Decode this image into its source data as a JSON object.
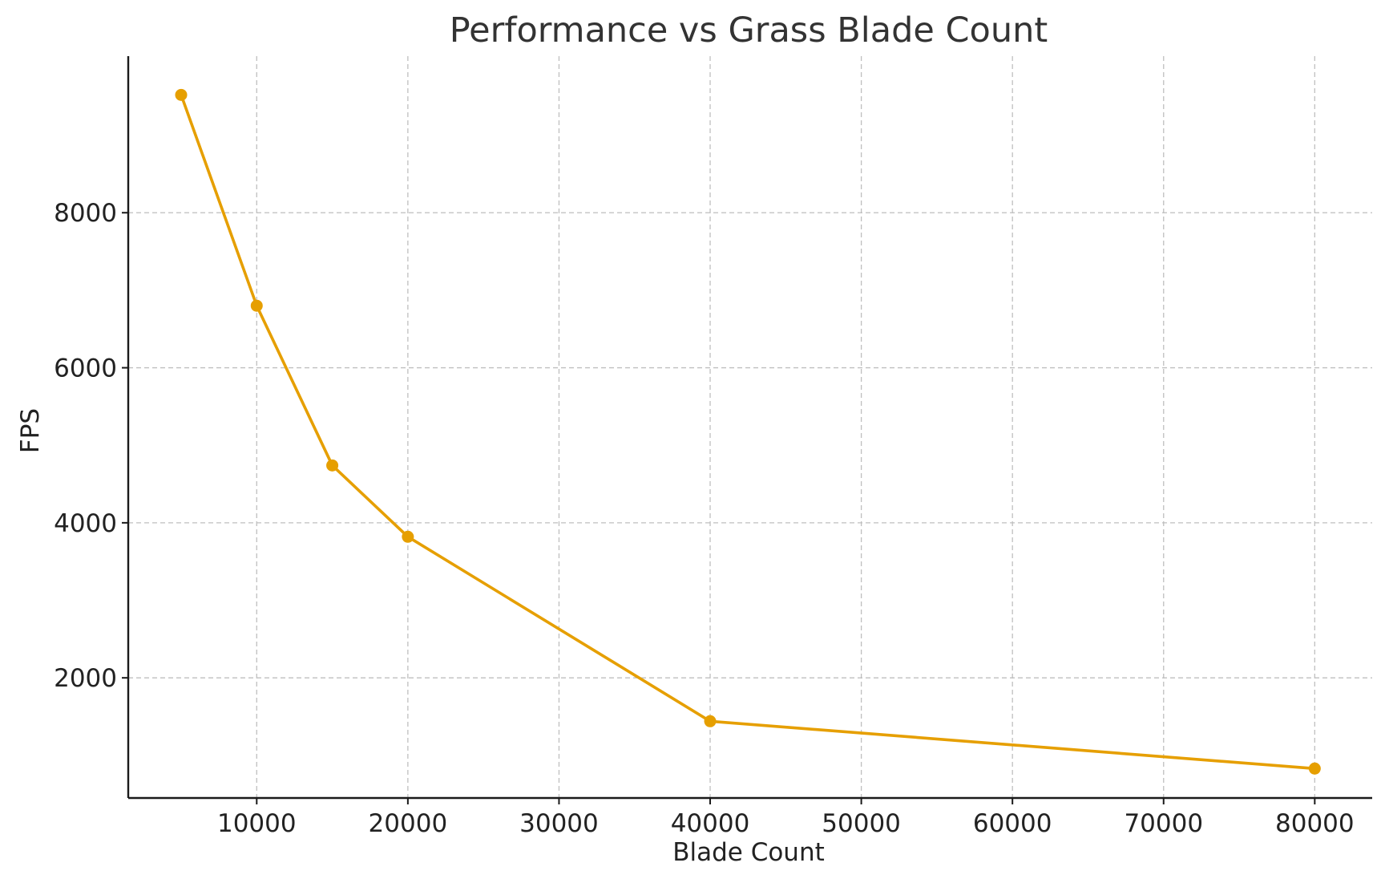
{
  "chart_data": {
    "type": "line",
    "title": "Performance vs Grass Blade Count",
    "xlabel": "Blade Count",
    "ylabel": "FPS",
    "xlim": [
      1500,
      83800
    ],
    "ylim": [
      450,
      10020
    ],
    "x_ticks": [
      10000,
      20000,
      30000,
      40000,
      50000,
      60000,
      70000,
      80000
    ],
    "y_ticks": [
      2000,
      4000,
      6000,
      8000
    ],
    "grid": true,
    "legend": "none",
    "series": [
      {
        "color": "#E69F00",
        "marker": "circle",
        "x": [
          5000,
          10000,
          15000,
          20000,
          40000,
          80000
        ],
        "y": [
          9520,
          6800,
          4740,
          3820,
          1440,
          830
        ]
      }
    ]
  }
}
